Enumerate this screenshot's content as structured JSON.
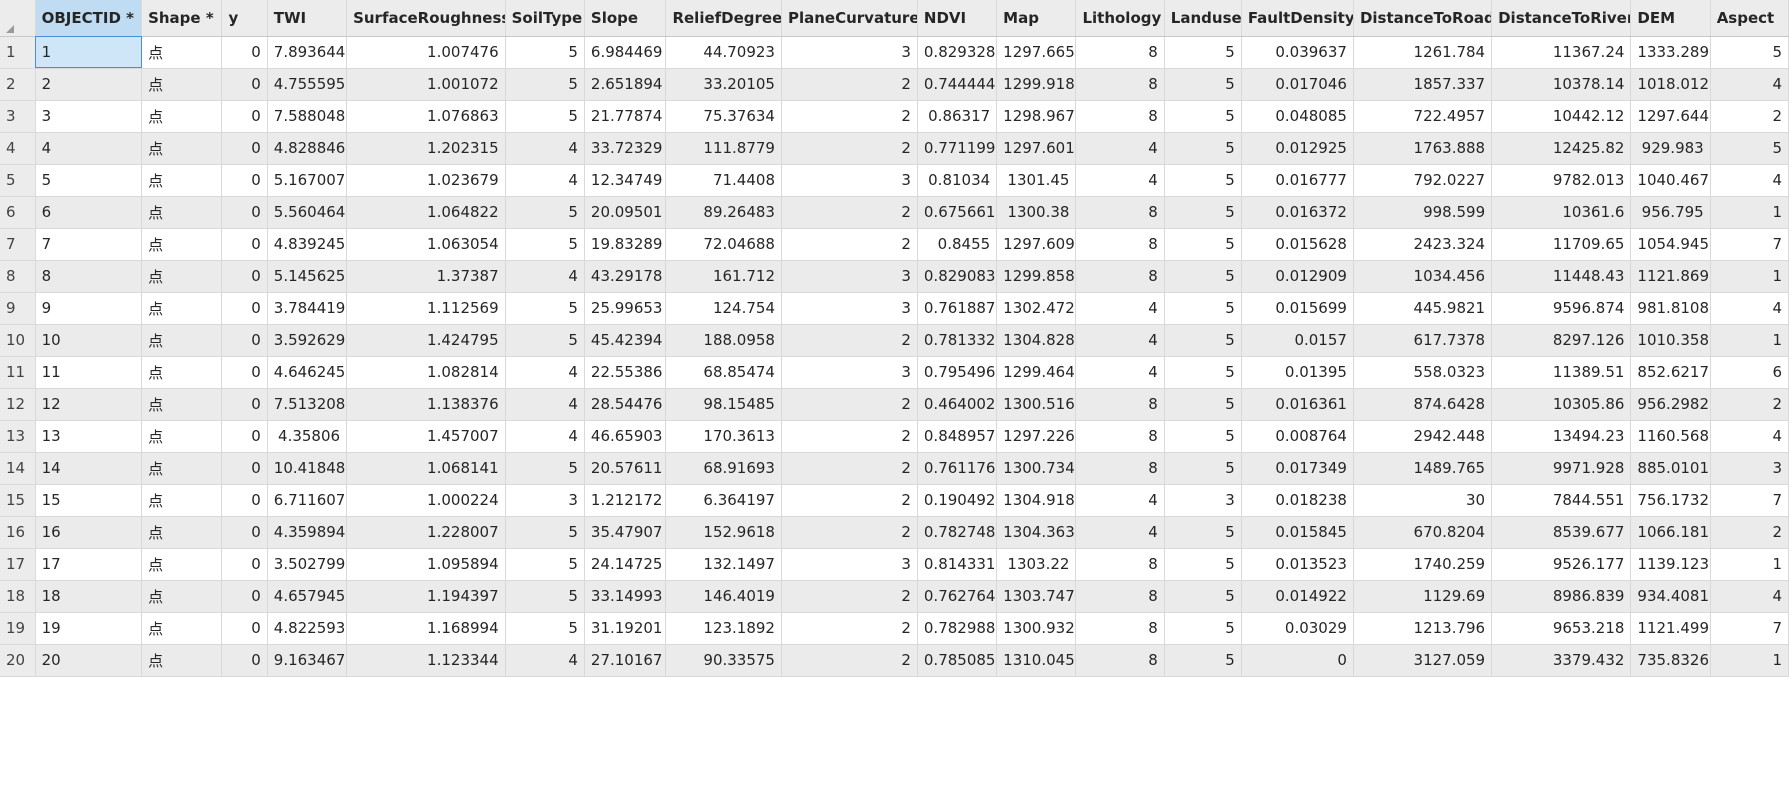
{
  "columns": [
    "OBJECTID *",
    "Shape *",
    "y",
    "TWI",
    "SurfaceRoughness",
    "SoilType",
    "Slope",
    "ReliefDegree",
    "PlaneCurvature",
    "NDVI",
    "Map",
    "Lithology",
    "Landuse",
    "FaultDensity",
    "DistanceToRoad",
    "DistanceToRiver",
    "DEM",
    "Aspect"
  ],
  "selected_column": "OBJECTID *",
  "rows": [
    {
      "n": "1",
      "c": [
        "1",
        "点",
        "0",
        "7.893644",
        "1.007476",
        "5",
        "6.984469",
        "44.70923",
        "3",
        "0.829328",
        "1297.665",
        "8",
        "5",
        "0.039637",
        "1261.784",
        "11367.24",
        "1333.289",
        "5"
      ]
    },
    {
      "n": "2",
      "c": [
        "2",
        "点",
        "0",
        "4.755595",
        "1.001072",
        "5",
        "2.651894",
        "33.20105",
        "2",
        "0.744444",
        "1299.918",
        "8",
        "5",
        "0.017046",
        "1857.337",
        "10378.14",
        "1018.012",
        "4"
      ]
    },
    {
      "n": "3",
      "c": [
        "3",
        "点",
        "0",
        "7.588048",
        "1.076863",
        "5",
        "21.77874",
        "75.37634",
        "2",
        "0.86317",
        "1298.967",
        "8",
        "5",
        "0.048085",
        "722.4957",
        "10442.12",
        "1297.644",
        "2"
      ]
    },
    {
      "n": "4",
      "c": [
        "4",
        "点",
        "0",
        "4.828846",
        "1.202315",
        "4",
        "33.72329",
        "111.8779",
        "2",
        "0.771199",
        "1297.601",
        "4",
        "5",
        "0.012925",
        "1763.888",
        "12425.82",
        "929.983",
        "5"
      ]
    },
    {
      "n": "5",
      "c": [
        "5",
        "点",
        "0",
        "5.167007",
        "1.023679",
        "4",
        "12.34749",
        "71.4408",
        "3",
        "0.81034",
        "1301.45",
        "4",
        "5",
        "0.016777",
        "792.0227",
        "9782.013",
        "1040.467",
        "4"
      ]
    },
    {
      "n": "6",
      "c": [
        "6",
        "点",
        "0",
        "5.560464",
        "1.064822",
        "5",
        "20.09501",
        "89.26483",
        "2",
        "0.675661",
        "1300.38",
        "8",
        "5",
        "0.016372",
        "998.599",
        "10361.6",
        "956.795",
        "1"
      ]
    },
    {
      "n": "7",
      "c": [
        "7",
        "点",
        "0",
        "4.839245",
        "1.063054",
        "5",
        "19.83289",
        "72.04688",
        "2",
        "0.8455",
        "1297.609",
        "8",
        "5",
        "0.015628",
        "2423.324",
        "11709.65",
        "1054.945",
        "7"
      ]
    },
    {
      "n": "8",
      "c": [
        "8",
        "点",
        "0",
        "5.145625",
        "1.37387",
        "4",
        "43.29178",
        "161.712",
        "3",
        "0.829083",
        "1299.858",
        "8",
        "5",
        "0.012909",
        "1034.456",
        "11448.43",
        "1121.869",
        "1"
      ]
    },
    {
      "n": "9",
      "c": [
        "9",
        "点",
        "0",
        "3.784419",
        "1.112569",
        "5",
        "25.99653",
        "124.754",
        "3",
        "0.761887",
        "1302.472",
        "4",
        "5",
        "0.015699",
        "445.9821",
        "9596.874",
        "981.8108",
        "4"
      ]
    },
    {
      "n": "10",
      "c": [
        "10",
        "点",
        "0",
        "3.592629",
        "1.424795",
        "5",
        "45.42394",
        "188.0958",
        "2",
        "0.781332",
        "1304.828",
        "4",
        "5",
        "0.0157",
        "617.7378",
        "8297.126",
        "1010.358",
        "1"
      ]
    },
    {
      "n": "11",
      "c": [
        "11",
        "点",
        "0",
        "4.646245",
        "1.082814",
        "4",
        "22.55386",
        "68.85474",
        "3",
        "0.795496",
        "1299.464",
        "4",
        "5",
        "0.01395",
        "558.0323",
        "11389.51",
        "852.6217",
        "6"
      ]
    },
    {
      "n": "12",
      "c": [
        "12",
        "点",
        "0",
        "7.513208",
        "1.138376",
        "4",
        "28.54476",
        "98.15485",
        "2",
        "0.464002",
        "1300.516",
        "8",
        "5",
        "0.016361",
        "874.6428",
        "10305.86",
        "956.2982",
        "2"
      ]
    },
    {
      "n": "13",
      "c": [
        "13",
        "点",
        "0",
        "4.35806",
        "1.457007",
        "4",
        "46.65903",
        "170.3613",
        "2",
        "0.848957",
        "1297.226",
        "8",
        "5",
        "0.008764",
        "2942.448",
        "13494.23",
        "1160.568",
        "4"
      ]
    },
    {
      "n": "14",
      "c": [
        "14",
        "点",
        "0",
        "10.41848",
        "1.068141",
        "5",
        "20.57611",
        "68.91693",
        "2",
        "0.761176",
        "1300.734",
        "8",
        "5",
        "0.017349",
        "1489.765",
        "9971.928",
        "885.0101",
        "3"
      ]
    },
    {
      "n": "15",
      "c": [
        "15",
        "点",
        "0",
        "6.711607",
        "1.000224",
        "3",
        "1.212172",
        "6.364197",
        "2",
        "0.190492",
        "1304.918",
        "4",
        "3",
        "0.018238",
        "30",
        "7844.551",
        "756.1732",
        "7"
      ]
    },
    {
      "n": "16",
      "c": [
        "16",
        "点",
        "0",
        "4.359894",
        "1.228007",
        "5",
        "35.47907",
        "152.9618",
        "2",
        "0.782748",
        "1304.363",
        "4",
        "5",
        "0.015845",
        "670.8204",
        "8539.677",
        "1066.181",
        "2"
      ]
    },
    {
      "n": "17",
      "c": [
        "17",
        "点",
        "0",
        "3.502799",
        "1.095894",
        "5",
        "24.14725",
        "132.1497",
        "3",
        "0.814331",
        "1303.22",
        "8",
        "5",
        "0.013523",
        "1740.259",
        "9526.177",
        "1139.123",
        "1"
      ]
    },
    {
      "n": "18",
      "c": [
        "18",
        "点",
        "0",
        "4.657945",
        "1.194397",
        "5",
        "33.14993",
        "146.4019",
        "2",
        "0.762764",
        "1303.747",
        "8",
        "5",
        "0.014922",
        "1129.69",
        "8986.839",
        "934.4081",
        "4"
      ]
    },
    {
      "n": "19",
      "c": [
        "19",
        "点",
        "0",
        "4.822593",
        "1.168994",
        "5",
        "31.19201",
        "123.1892",
        "2",
        "0.782988",
        "1300.932",
        "8",
        "5",
        "0.03029",
        "1213.796",
        "9653.218",
        "1121.499",
        "7"
      ]
    },
    {
      "n": "20",
      "c": [
        "20",
        "点",
        "0",
        "9.163467",
        "1.123344",
        "4",
        "27.10167",
        "90.33575",
        "2",
        "0.785085",
        "1310.045",
        "8",
        "5",
        "0",
        "3127.059",
        "3379.432",
        "735.8326",
        "1"
      ]
    }
  ]
}
